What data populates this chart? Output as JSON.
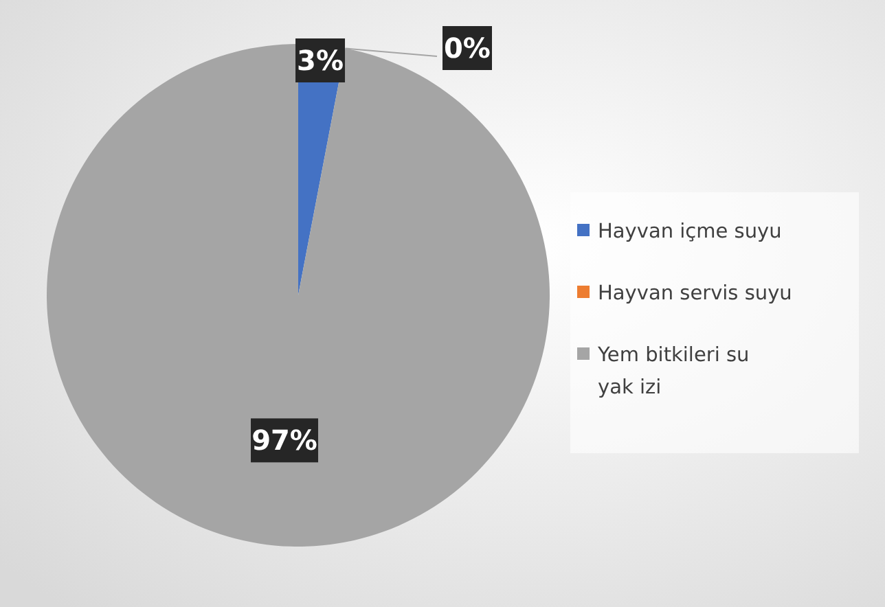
{
  "chart_data": {
    "type": "pie",
    "categories": [
      "Hayvan içme suyu",
      "Hayvan servis suyu",
      "Yem bitkileri su yak izi"
    ],
    "values": [
      3,
      0,
      97
    ],
    "colors": [
      "#4472c4",
      "#ed7d31",
      "#a5a5a5"
    ],
    "value_labels": [
      "3%",
      "0%",
      "97%"
    ],
    "legend": "right"
  }
}
